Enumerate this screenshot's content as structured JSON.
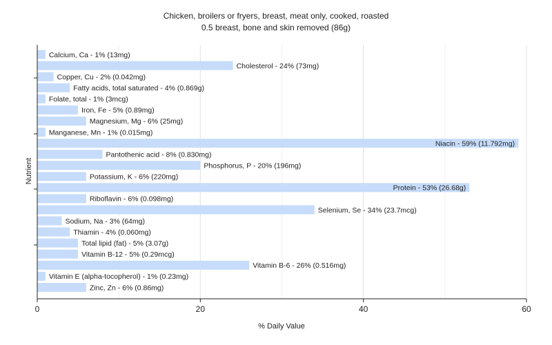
{
  "chart_data": {
    "type": "bar",
    "orientation": "horizontal",
    "title": "Chicken, broilers or fryers, breast, meat only, cooked, roasted",
    "subtitle": "0.5 breast, bone and skin removed (86g)",
    "xlabel": "% Daily Value",
    "ylabel": "Nutrient",
    "xlim": [
      0,
      60
    ],
    "xticks": [
      0,
      20,
      40,
      60
    ],
    "grid": true,
    "bar_color": "#c6dcfa",
    "categories": [
      "Calcium, Ca",
      "Cholesterol",
      "Copper, Cu",
      "Fatty acids, total saturated",
      "Folate, total",
      "Iron, Fe",
      "Magnesium, Mg",
      "Manganese, Mn",
      "Niacin",
      "Pantothenic acid",
      "Phosphorus, P",
      "Potassium, K",
      "Protein",
      "Riboflavin",
      "Selenium, Se",
      "Sodium, Na",
      "Thiamin",
      "Total lipid (fat)",
      "Vitamin B-12",
      "Vitamin B-6",
      "Vitamin E (alpha-tocopherol)",
      "Zinc, Zn"
    ],
    "values": [
      1,
      24,
      2,
      4,
      1,
      5,
      6,
      1,
      59,
      8,
      20,
      6,
      53,
      6,
      34,
      3,
      4,
      5,
      5,
      26,
      1,
      6
    ],
    "labels": [
      "Calcium, Ca - 1% (13mg)",
      "Cholesterol - 24% (73mg)",
      "Copper, Cu - 2% (0.042mg)",
      "Fatty acids, total saturated - 4% (0.869g)",
      "Folate, total - 1% (3mcg)",
      "Iron, Fe - 5% (0.89mg)",
      "Magnesium, Mg - 6% (25mg)",
      "Manganese, Mn - 1% (0.015mg)",
      "Niacin - 59% (11.792mg)",
      "Pantothenic acid - 8% (0.830mg)",
      "Phosphorus, P - 20% (196mg)",
      "Potassium, K - 6% (220mg)",
      "Protein - 53% (26.68g)",
      "Riboflavin - 6% (0.098mg)",
      "Selenium, Se - 34% (23.7mcg)",
      "Sodium, Na - 3% (64mg)",
      "Thiamin - 4% (0.060mg)",
      "Total lipid (fat) - 5% (3.07g)",
      "Vitamin B-12 - 5% (0.29mcg)",
      "Vitamin B-6 - 26% (0.516mg)",
      "Vitamin E (alpha-tocopherol) - 1% (0.23mg)",
      "Zinc, Zn - 6% (0.86mg)"
    ]
  }
}
